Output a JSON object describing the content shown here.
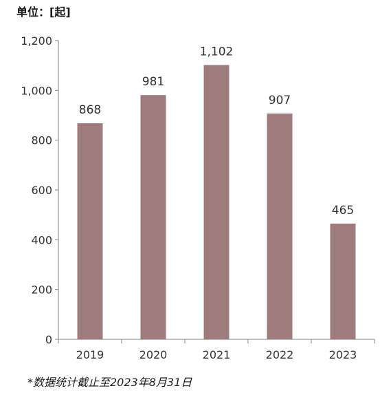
{
  "unit_label": "单位：[起]",
  "footnote": "*数据统计截止至2023年8月31日",
  "colors": {
    "bar": "#9E7C7B",
    "axis": "#808080",
    "text": "#333333"
  },
  "chart_data": {
    "type": "bar",
    "categories": [
      "2019",
      "2020",
      "2021",
      "2022",
      "2023"
    ],
    "values": [
      868,
      981,
      1102,
      907,
      465
    ],
    "value_labels": [
      "868",
      "981",
      "1,102",
      "907",
      "465"
    ],
    "ylim": [
      0,
      1200
    ],
    "yticks": [
      0,
      200,
      400,
      600,
      800,
      1000,
      1200
    ],
    "ytick_labels": [
      "0",
      "200",
      "400",
      "600",
      "800",
      "1,000",
      "1,200"
    ],
    "grid": false,
    "legend": "none"
  }
}
